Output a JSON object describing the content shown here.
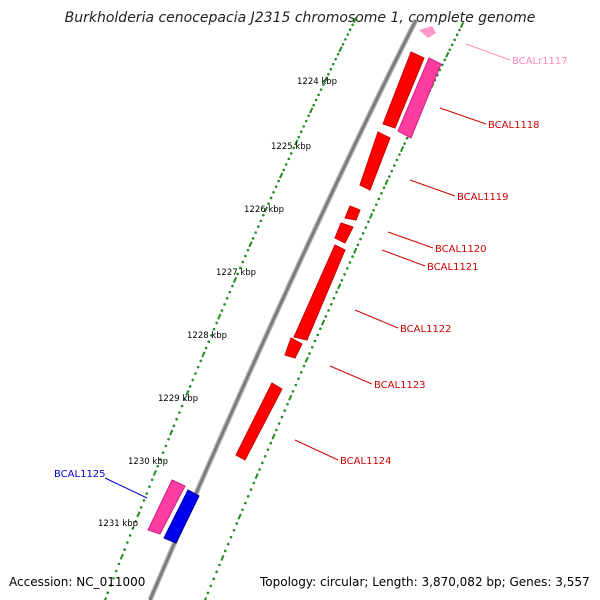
{
  "title": "Burkholderia cenocepacia J2315 chromosome 1, complete genome",
  "accession": "Accession: NC_011000",
  "topology": "Topology: circular; Length: 3,870,082 bp; Genes: 3,557",
  "colors": {
    "backbone": "#808080",
    "gene": "#ff0000",
    "gene_label": "#cc0000",
    "rna": "#ff3ca0",
    "rna_label": "#ff88bb",
    "reverse_gene": "#0000ee",
    "reverse_label": "#0000cc",
    "tick": "#228b22"
  },
  "scale_labels": [
    "1224 kbp",
    "1225 kbp",
    "1226 kbp",
    "1227 kbp",
    "1228 kbp",
    "1229 kbp",
    "1230 kbp",
    "1231 kbp"
  ],
  "genes": [
    {
      "id": "BCALr1117",
      "kind": "rna"
    },
    {
      "id": "BCAL1118",
      "kind": "gene"
    },
    {
      "id": "BCAL1119",
      "kind": "gene"
    },
    {
      "id": "BCAL1120",
      "kind": "gene"
    },
    {
      "id": "BCAL1121",
      "kind": "gene"
    },
    {
      "id": "BCAL1122",
      "kind": "gene"
    },
    {
      "id": "BCAL1123",
      "kind": "gene"
    },
    {
      "id": "BCAL1124",
      "kind": "gene"
    },
    {
      "id": "BCAL1125",
      "kind": "reverse"
    }
  ]
}
